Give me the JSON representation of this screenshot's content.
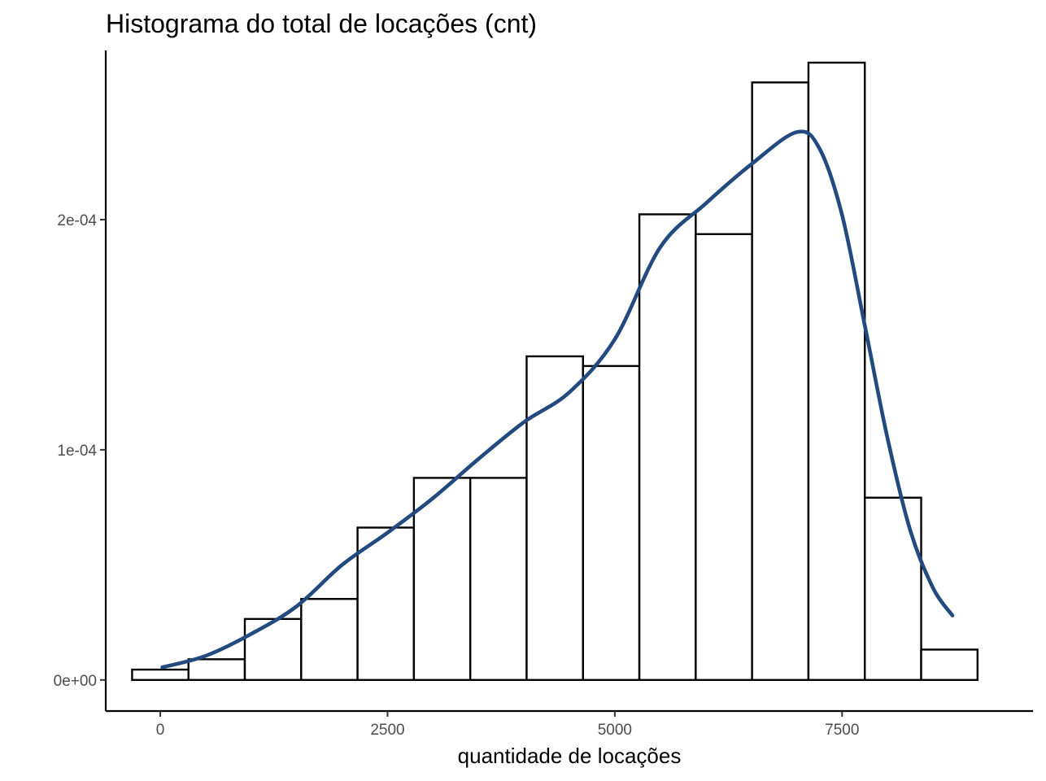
{
  "chart_data": {
    "type": "bar",
    "title": "Histograma do total de locações (cnt)",
    "xlabel": "quantidade de locações",
    "ylabel": "",
    "xlim": [
      -600,
      9600
    ],
    "ylim": [
      -1.35e-05,
      0.0002735
    ],
    "x_ticks": [
      {
        "value": 0,
        "label": "0"
      },
      {
        "value": 2500,
        "label": "2500"
      },
      {
        "value": 5000,
        "label": "5000"
      },
      {
        "value": 7500,
        "label": "7500"
      }
    ],
    "y_ticks": [
      {
        "value": 0,
        "label": "0e+00"
      },
      {
        "value": 0.0001,
        "label": "1e-04"
      },
      {
        "value": 0.0002,
        "label": "2e-04"
      }
    ],
    "bins": [
      {
        "x0": -310,
        "x1": 310,
        "density": 4.5e-06
      },
      {
        "x0": 310,
        "x1": 930,
        "density": 9e-06
      },
      {
        "x0": 930,
        "x1": 1550,
        "density": 2.65e-05
      },
      {
        "x0": 1550,
        "x1": 2170,
        "density": 3.52e-05
      },
      {
        "x0": 2170,
        "x1": 2790,
        "density": 6.62e-05
      },
      {
        "x0": 2790,
        "x1": 3410,
        "density": 8.78e-05
      },
      {
        "x0": 3410,
        "x1": 4030,
        "density": 8.78e-05
      },
      {
        "x0": 4030,
        "x1": 4650,
        "density": 0.0001406
      },
      {
        "x0": 4650,
        "x1": 5270,
        "density": 0.0001364
      },
      {
        "x0": 5270,
        "x1": 5890,
        "density": 0.0002023
      },
      {
        "x0": 5890,
        "x1": 6510,
        "density": 0.0001937
      },
      {
        "x0": 6510,
        "x1": 7130,
        "density": 0.0002596
      },
      {
        "x0": 7130,
        "x1": 7750,
        "density": 0.0002682
      },
      {
        "x0": 7750,
        "x1": 8370,
        "density": 7.92e-05
      },
      {
        "x0": 8370,
        "x1": 8990,
        "density": 1.32e-05
      }
    ],
    "density_curve": {
      "color": "#224a7e",
      "x": [
        22,
        500,
        1000,
        1500,
        2000,
        2500,
        3000,
        3500,
        4000,
        4500,
        5000,
        5500,
        6000,
        6500,
        7000,
        7250,
        7500,
        7750,
        8000,
        8250,
        8500,
        8714
      ],
      "y": [
        5.5e-06,
        1.05e-05,
        2e-05,
        3.2e-05,
        5e-05,
        6.4e-05,
        7.9e-05,
        9.6e-05,
        0.000112,
        0.000125,
        0.000148,
        0.000188,
        0.000207,
        0.000224,
        0.000238,
        0.000231,
        0.000202,
        0.000154,
        0.000105,
        6.5e-05,
        4e-05,
        2.8e-05
      ]
    },
    "grid": false,
    "legend": "none"
  }
}
